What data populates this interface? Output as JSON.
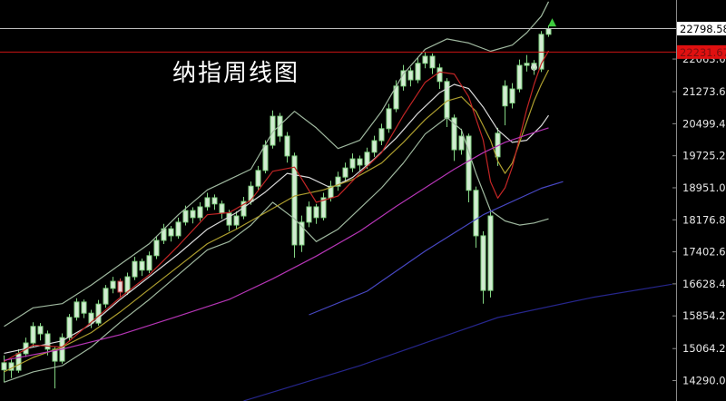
{
  "title": "纳指周线图",
  "axis": {
    "last_price_label": "22798.58",
    "alert_price_label": "22231.67",
    "tick_labels": [
      "22063.60",
      "21273.60",
      "20499.40",
      "19725.20",
      "18951.00",
      "18176.80",
      "17402.60",
      "16628.40",
      "15854.20",
      "15064.20",
      "14290.00"
    ],
    "label_color": "#e8e8e8",
    "axis_line_color": "#8a8a8a",
    "last_price_box": {
      "bg": "#ffffff",
      "fg": "#000000"
    },
    "alert_price_box": {
      "bg": "#e01010",
      "fg": "#7a0f0f"
    }
  },
  "chart_data": {
    "type": "candlestick",
    "title": "纳指周线图",
    "ylim": [
      13797,
      23490
    ],
    "bars_visible": 76,
    "grid": "off",
    "candle_up_fill": "#d2ecd2",
    "candle_border": "#83d483",
    "red_candle_border": "#c74040",
    "red_candle_fill": "#e8d6d6",
    "red_candle_indices": [
      16
    ],
    "candles": [
      [
        14550,
        14900,
        14250,
        14720
      ],
      [
        14720,
        14820,
        14350,
        14540
      ],
      [
        14540,
        15050,
        14480,
        14940
      ],
      [
        14940,
        15330,
        14860,
        15200
      ],
      [
        15200,
        15700,
        15100,
        15600
      ],
      [
        15600,
        15680,
        15260,
        15420
      ],
      [
        15420,
        15500,
        14900,
        15050
      ],
      [
        15050,
        15120,
        14100,
        14760
      ],
      [
        14760,
        15430,
        14700,
        15330
      ],
      [
        15330,
        15900,
        15240,
        15820
      ],
      [
        15820,
        16280,
        15740,
        16190
      ],
      [
        16190,
        16250,
        15800,
        15920
      ],
      [
        15920,
        16000,
        15560,
        15680
      ],
      [
        15680,
        16240,
        15620,
        16140
      ],
      [
        16140,
        16600,
        16050,
        16520
      ],
      [
        16520,
        16800,
        16400,
        16690
      ],
      [
        16690,
        16760,
        16300,
        16430
      ],
      [
        16430,
        16900,
        16360,
        16800
      ],
      [
        16800,
        17280,
        16720,
        17170
      ],
      [
        17170,
        17240,
        16820,
        16960
      ],
      [
        16960,
        17410,
        16890,
        17310
      ],
      [
        17310,
        17780,
        17230,
        17680
      ],
      [
        17680,
        18080,
        17590,
        17960
      ],
      [
        17960,
        18030,
        17650,
        17790
      ],
      [
        17790,
        18230,
        17720,
        18120
      ],
      [
        18120,
        18520,
        18040,
        18400
      ],
      [
        18400,
        18480,
        18090,
        18230
      ],
      [
        18230,
        18600,
        18150,
        18490
      ],
      [
        18490,
        18830,
        18400,
        18710
      ],
      [
        18710,
        18790,
        18420,
        18560
      ],
      [
        18560,
        18640,
        18200,
        18340
      ],
      [
        18340,
        18420,
        17900,
        18050
      ],
      [
        18050,
        18380,
        17960,
        18270
      ],
      [
        18270,
        18730,
        18190,
        18620
      ],
      [
        18620,
        19100,
        18540,
        18990
      ],
      [
        18990,
        19480,
        18900,
        19370
      ],
      [
        19370,
        20100,
        19300,
        19980
      ],
      [
        19980,
        20820,
        19900,
        20680
      ],
      [
        20680,
        20760,
        20060,
        20200
      ],
      [
        20200,
        20300,
        19560,
        19720
      ],
      [
        19720,
        19800,
        17260,
        17570
      ],
      [
        17570,
        18280,
        17400,
        18120
      ],
      [
        18120,
        18620,
        18000,
        18490
      ],
      [
        18490,
        18560,
        18080,
        18230
      ],
      [
        18230,
        18830,
        18160,
        18710
      ],
      [
        18710,
        19120,
        18620,
        18990
      ],
      [
        18990,
        19340,
        18880,
        19210
      ],
      [
        19210,
        19560,
        19090,
        19430
      ],
      [
        19430,
        19780,
        19330,
        19650
      ],
      [
        19650,
        19730,
        19360,
        19500
      ],
      [
        19500,
        19920,
        19410,
        19810
      ],
      [
        19810,
        20210,
        19700,
        20090
      ],
      [
        20090,
        20500,
        19980,
        20380
      ],
      [
        20380,
        20980,
        20280,
        20860
      ],
      [
        20860,
        21550,
        20780,
        21410
      ],
      [
        21410,
        21920,
        21300,
        21780
      ],
      [
        21780,
        21860,
        21400,
        21560
      ],
      [
        21560,
        22100,
        21480,
        21960
      ],
      [
        21960,
        22240,
        21840,
        22130
      ],
      [
        22130,
        22200,
        21700,
        21850
      ],
      [
        21850,
        21950,
        21340,
        21520
      ],
      [
        21520,
        21600,
        20420,
        20640
      ],
      [
        20640,
        20720,
        19600,
        19870
      ],
      [
        19870,
        20380,
        19750,
        20200
      ],
      [
        20200,
        20260,
        18600,
        18890
      ],
      [
        18890,
        18980,
        17500,
        17790
      ],
      [
        17790,
        17900,
        16150,
        16470
      ],
      [
        16470,
        18400,
        16300,
        18270
      ],
      [
        19700,
        20400,
        19480,
        20270
      ],
      [
        20930,
        21550,
        20460,
        21410
      ],
      [
        21000,
        21480,
        20870,
        21340
      ],
      [
        21340,
        22050,
        21260,
        21910
      ],
      [
        21910,
        22160,
        21760,
        21960
      ],
      [
        21960,
        22040,
        21680,
        21820
      ],
      [
        21820,
        22740,
        21750,
        22660
      ],
      [
        22660,
        22880,
        22600,
        22798.58
      ]
    ],
    "overlays": [
      {
        "name": "bollinger-upper",
        "color": "#9fb89f",
        "points": [
          [
            0,
            15600
          ],
          [
            4,
            16050
          ],
          [
            8,
            16150
          ],
          [
            12,
            16600
          ],
          [
            16,
            17100
          ],
          [
            20,
            17600
          ],
          [
            24,
            18300
          ],
          [
            28,
            18900
          ],
          [
            31,
            19150
          ],
          [
            34,
            19400
          ],
          [
            37,
            20300
          ],
          [
            40,
            20800
          ],
          [
            43,
            20400
          ],
          [
            46,
            19900
          ],
          [
            49,
            20100
          ],
          [
            52,
            20800
          ],
          [
            55,
            21700
          ],
          [
            58,
            22300
          ],
          [
            61,
            22550
          ],
          [
            64,
            22450
          ],
          [
            67,
            22250
          ],
          [
            70,
            22400
          ],
          [
            72,
            22700
          ],
          [
            74,
            23100
          ],
          [
            75,
            23450
          ]
        ]
      },
      {
        "name": "bollinger-lower",
        "color": "#9fb89f",
        "points": [
          [
            0,
            14250
          ],
          [
            4,
            14500
          ],
          [
            8,
            14650
          ],
          [
            12,
            15100
          ],
          [
            16,
            15700
          ],
          [
            20,
            16250
          ],
          [
            24,
            16850
          ],
          [
            28,
            17450
          ],
          [
            31,
            17650
          ],
          [
            34,
            18050
          ],
          [
            37,
            18600
          ],
          [
            40,
            18200
          ],
          [
            43,
            17650
          ],
          [
            46,
            17950
          ],
          [
            49,
            18450
          ],
          [
            52,
            18950
          ],
          [
            55,
            19550
          ],
          [
            58,
            20250
          ],
          [
            61,
            20650
          ],
          [
            63,
            20350
          ],
          [
            65,
            19300
          ],
          [
            67,
            18400
          ],
          [
            69,
            18150
          ],
          [
            71,
            18050
          ],
          [
            73,
            18100
          ],
          [
            75,
            18200
          ]
        ]
      },
      {
        "name": "ma-white",
        "color": "#d9d9d9",
        "points": [
          [
            0,
            14950
          ],
          [
            4,
            15100
          ],
          [
            8,
            15250
          ],
          [
            12,
            15650
          ],
          [
            16,
            16250
          ],
          [
            20,
            16800
          ],
          [
            24,
            17350
          ],
          [
            28,
            17950
          ],
          [
            32,
            18350
          ],
          [
            36,
            18850
          ],
          [
            39,
            19300
          ],
          [
            42,
            19200
          ],
          [
            45,
            18950
          ],
          [
            48,
            19200
          ],
          [
            51,
            19650
          ],
          [
            54,
            20150
          ],
          [
            57,
            20750
          ],
          [
            60,
            21250
          ],
          [
            62,
            21450
          ],
          [
            64,
            21350
          ],
          [
            66,
            20900
          ],
          [
            68,
            20350
          ],
          [
            70,
            20050
          ],
          [
            72,
            20100
          ],
          [
            74,
            20450
          ],
          [
            75,
            20700
          ]
        ]
      },
      {
        "name": "ma-yellow",
        "color": "#ad9e2e",
        "points": [
          [
            0,
            14500
          ],
          [
            4,
            14850
          ],
          [
            8,
            15100
          ],
          [
            12,
            15450
          ],
          [
            16,
            15950
          ],
          [
            20,
            16500
          ],
          [
            24,
            17050
          ],
          [
            28,
            17600
          ],
          [
            32,
            17950
          ],
          [
            36,
            18350
          ],
          [
            40,
            18750
          ],
          [
            44,
            18900
          ],
          [
            48,
            19150
          ],
          [
            52,
            19550
          ],
          [
            55,
            20050
          ],
          [
            58,
            20600
          ],
          [
            61,
            21050
          ],
          [
            63,
            21150
          ],
          [
            65,
            20800
          ],
          [
            67,
            20100
          ],
          [
            68,
            19600
          ],
          [
            69,
            19300
          ],
          [
            70,
            19550
          ],
          [
            71,
            20050
          ],
          [
            72,
            20550
          ],
          [
            73,
            21050
          ],
          [
            74,
            21450
          ],
          [
            75,
            21800
          ]
        ]
      },
      {
        "name": "ma-red",
        "color": "#c22525",
        "points": [
          [
            0,
            14750
          ],
          [
            4,
            15150
          ],
          [
            8,
            15100
          ],
          [
            12,
            15700
          ],
          [
            16,
            16300
          ],
          [
            20,
            16850
          ],
          [
            24,
            17550
          ],
          [
            28,
            18300
          ],
          [
            31,
            18350
          ],
          [
            34,
            18650
          ],
          [
            37,
            19350
          ],
          [
            40,
            19450
          ],
          [
            43,
            18600
          ],
          [
            46,
            18750
          ],
          [
            49,
            19300
          ],
          [
            52,
            19800
          ],
          [
            55,
            20700
          ],
          [
            58,
            21500
          ],
          [
            60,
            21750
          ],
          [
            62,
            21700
          ],
          [
            64,
            21150
          ],
          [
            66,
            20100
          ],
          [
            67,
            19100
          ],
          [
            68,
            18700
          ],
          [
            69,
            18950
          ],
          [
            70,
            19450
          ],
          [
            71,
            20150
          ],
          [
            72,
            20850
          ],
          [
            73,
            21450
          ],
          [
            74,
            21950
          ],
          [
            75,
            22260
          ]
        ]
      },
      {
        "name": "ma-magenta",
        "color": "#b535b5",
        "points": [
          [
            0,
            14780
          ],
          [
            8,
            15050
          ],
          [
            16,
            15400
          ],
          [
            24,
            15850
          ],
          [
            31,
            16250
          ],
          [
            37,
            16750
          ],
          [
            43,
            17300
          ],
          [
            49,
            17900
          ],
          [
            54,
            18500
          ],
          [
            58,
            18950
          ],
          [
            62,
            19400
          ],
          [
            66,
            19800
          ],
          [
            69,
            20050
          ],
          [
            72,
            20230
          ],
          [
            75,
            20400
          ]
        ]
      },
      {
        "name": "ma-blue",
        "color": "#4747c2",
        "points": [
          [
            42,
            15880
          ],
          [
            50,
            16450
          ],
          [
            58,
            17420
          ],
          [
            66,
            18300
          ],
          [
            74,
            18940
          ],
          [
            77,
            19100
          ]
        ]
      },
      {
        "name": "trendline-navy",
        "color": "#26268c",
        "points": [
          [
            33,
            13800
          ],
          [
            49,
            14650
          ],
          [
            68,
            15815
          ],
          [
            81,
            16300
          ],
          [
            92,
            16620
          ]
        ]
      }
    ],
    "hlines": [
      {
        "name": "last-price-line",
        "price": 22798.58,
        "color": "#bdbdbd"
      },
      {
        "name": "alert-line",
        "price": 22231.67,
        "color": "#cc1414"
      }
    ],
    "markers": [
      {
        "type": "circle",
        "bar": 73,
        "price": 21860,
        "color": "#d8d8d8"
      },
      {
        "type": "up-arrow",
        "bar": 75.5,
        "price": 22940,
        "color": "#3ecb3e"
      }
    ]
  }
}
